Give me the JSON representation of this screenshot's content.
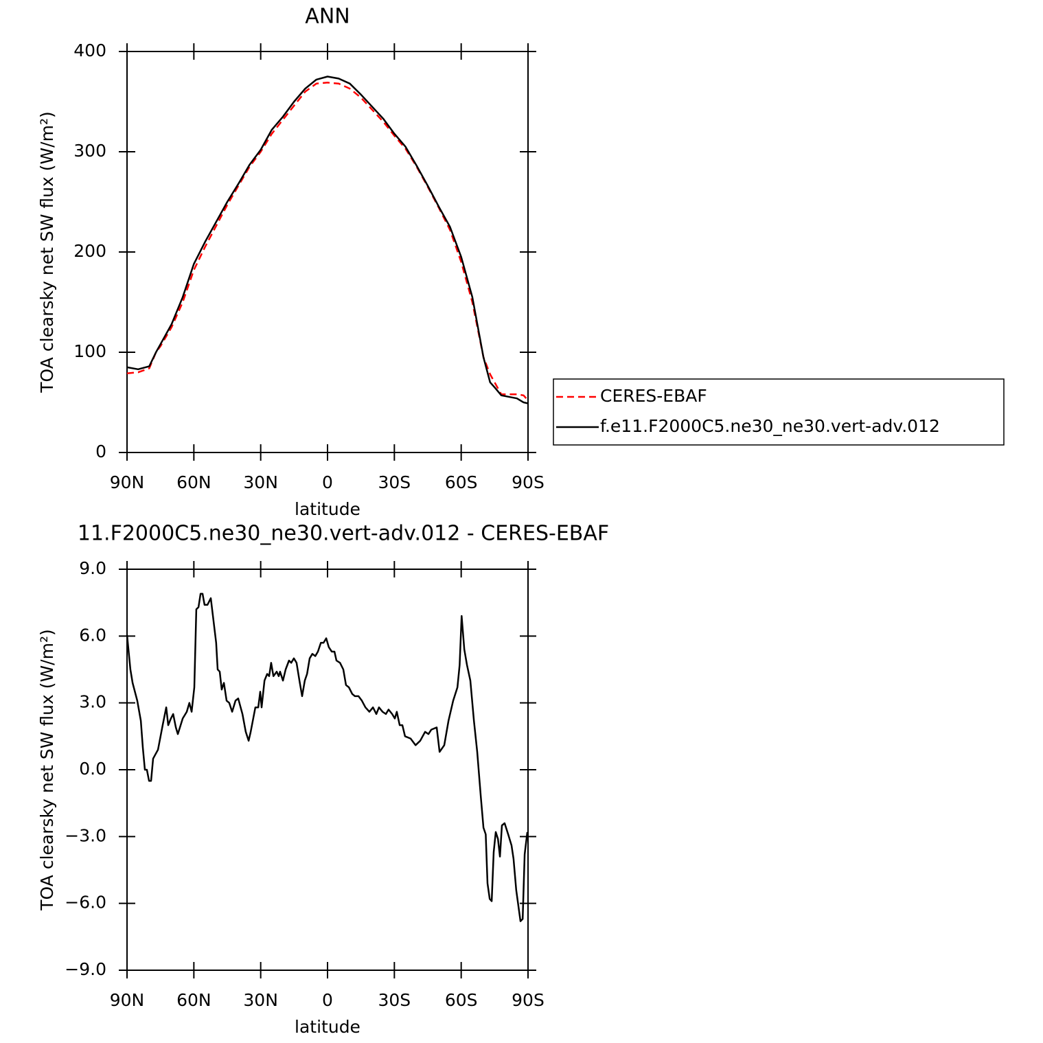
{
  "chart_data": [
    {
      "type": "line",
      "title": "ANN",
      "xlabel": "latitude",
      "ylabel": "TOA clearsky net SW flux (W/m²)",
      "x": [
        90,
        85,
        80,
        77,
        75,
        70,
        65,
        60,
        55,
        50,
        45,
        40,
        35,
        30,
        25,
        20,
        15,
        10,
        5,
        0,
        -5,
        -10,
        -15,
        -20,
        -25,
        -30,
        -35,
        -40,
        -45,
        -50,
        -55,
        -60,
        -65,
        -70,
        -73,
        -75,
        -78,
        -85,
        -88,
        -90
      ],
      "series": [
        {
          "name": "CERES-EBAF",
          "color": "#ff0000",
          "dashed": true,
          "values": [
            79,
            80,
            84,
            100,
            106,
            125,
            150,
            182,
            205,
            226,
            247,
            266,
            285,
            300,
            318,
            332,
            346,
            360,
            368,
            369,
            368,
            363,
            354,
            342,
            330,
            316,
            303,
            285,
            265,
            244,
            222,
            190,
            150,
            95,
            78,
            70,
            58,
            58,
            57,
            52
          ]
        },
        {
          "name": "f.e11.F2000C5.ne30_ne30.vert-adv.012",
          "color": "#000000",
          "dashed": false,
          "values": [
            85,
            83,
            86,
            100,
            108,
            128,
            155,
            188,
            210,
            230,
            250,
            268,
            287,
            302,
            322,
            335,
            350,
            363,
            372,
            375,
            373,
            368,
            357,
            345,
            333,
            318,
            305,
            286,
            266,
            245,
            225,
            195,
            155,
            95,
            70,
            65,
            57,
            54,
            50,
            49
          ]
        }
      ],
      "xlim": [
        90,
        -90
      ],
      "xticks": [
        {
          "value": 90,
          "label": "90N"
        },
        {
          "value": 60,
          "label": "60N"
        },
        {
          "value": 30,
          "label": "30N"
        },
        0,
        {
          "value": -30,
          "label": "30S"
        },
        {
          "value": -60,
          "label": "60S"
        },
        {
          "value": -90,
          "label": "90S"
        }
      ],
      "ylim": [
        0,
        400
      ],
      "yticks": [
        0,
        100,
        200,
        300,
        400
      ],
      "legend": "right"
    },
    {
      "type": "line",
      "title": "11.F2000C5.ne30_ne30.vert-adv.012 - CERES-EBAF",
      "xlabel": "latitude",
      "ylabel": "TOA clearsky net SW flux (W/m²)",
      "x": [
        90,
        88.5,
        87.5,
        85.4,
        83.8,
        82.9,
        82,
        81.1,
        80.1,
        79.2,
        78.3,
        76.1,
        74,
        72.4,
        71.5,
        70.3,
        69.3,
        68.1,
        67.2,
        65,
        63.2,
        62,
        61,
        59.8,
        58.9,
        57.9,
        57,
        56.1,
        55.2,
        53.9,
        52.4,
        50,
        49.3,
        48.4,
        47.5,
        46.5,
        45.3,
        44.1,
        42.8,
        41.3,
        40.1,
        38.2,
        36.7,
        35.4,
        34.5,
        32.4,
        31.1,
        30.2,
        29.6,
        28.3,
        27.1,
        26.2,
        25.3,
        24.3,
        22.8,
        21.9,
        21.3,
        20,
        18.8,
        17.3,
        16.3,
        15.1,
        13.9,
        12.6,
        11.4,
        10.2,
        9.2,
        8,
        6.8,
        5.5,
        4.3,
        3,
        1.8,
        0.6,
        -0.6,
        -1.9,
        -3.1,
        -4,
        -5.6,
        -7.1,
        -8.3,
        -9.6,
        -11.1,
        -12.3,
        -13.9,
        -15.4,
        -17,
        -18.8,
        -20.4,
        -21.9,
        -23.1,
        -24.7,
        -26.2,
        -27.4,
        -29,
        -30.2,
        -31.1,
        -32.4,
        -33.6,
        -34.8,
        -37.3,
        -39.5,
        -41.6,
        -43.8,
        -45.3,
        -46.6,
        -49,
        -50.3,
        -52.4,
        -54.3,
        -56.4,
        -58.3,
        -59.3,
        -60.2,
        -61.4,
        -62.6,
        -64.1,
        -65.7,
        -67.2,
        -68.8,
        -70,
        -71,
        -71.8,
        -72.8,
        -73.7,
        -74.6,
        -75.5,
        -76.5,
        -77.4,
        -78.3,
        -79.5,
        -81.1,
        -82.6,
        -83.5,
        -84.7,
        -86.6,
        -87.6,
        -88.5,
        -89.7
      ],
      "series": [
        {
          "color": "#000000",
          "dashed": false,
          "values": [
            6.05,
            4.5,
            3.9,
            3.1,
            2.2,
            1.0,
            0,
            0,
            -0.5,
            -0.5,
            0.5,
            0.9,
            2.0,
            2.8,
            2.0,
            2.3,
            2.5,
            1.9,
            1.6,
            2.3,
            2.6,
            3.0,
            2.6,
            3.7,
            7.2,
            7.3,
            7.9,
            7.9,
            7.4,
            7.4,
            7.7,
            5.7,
            4.5,
            4.4,
            3.6,
            3.9,
            3.1,
            3.0,
            2.6,
            3.1,
            3.2,
            2.5,
            1.7,
            1.3,
            1.7,
            2.8,
            2.8,
            3.5,
            2.8,
            4.0,
            4.3,
            4.2,
            4.8,
            4.2,
            4.4,
            4.2,
            4.4,
            4.0,
            4.5,
            4.9,
            4.8,
            5.0,
            4.8,
            4.0,
            3.3,
            4.0,
            4.3,
            5.0,
            5.2,
            5.1,
            5.3,
            5.7,
            5.7,
            5.9,
            5.5,
            5.3,
            5.3,
            4.9,
            4.8,
            4.5,
            3.8,
            3.7,
            3.4,
            3.3,
            3.3,
            3.1,
            2.8,
            2.6,
            2.8,
            2.5,
            2.8,
            2.6,
            2.5,
            2.7,
            2.5,
            2.3,
            2.6,
            2.0,
            2.0,
            1.5,
            1.4,
            1.1,
            1.3,
            1.7,
            1.6,
            1.8,
            1.9,
            0.8,
            1.1,
            2.2,
            3.1,
            3.7,
            4.7,
            6.9,
            5.4,
            4.7,
            4.0,
            2.2,
            0.8,
            -1.2,
            -2.6,
            -2.9,
            -5.1,
            -5.8,
            -5.9,
            -3.7,
            -2.8,
            -3.1,
            -3.9,
            -2.5,
            -2.4,
            -2.9,
            -3.4,
            -4.0,
            -5.4,
            -6.8,
            -6.7,
            -3.8,
            -2.8
          ]
        }
      ],
      "xlim": [
        90,
        -90
      ],
      "xticks": [
        {
          "value": 90,
          "label": "90N"
        },
        {
          "value": 60,
          "label": "60N"
        },
        {
          "value": 30,
          "label": "30N"
        },
        0,
        {
          "value": -30,
          "label": "30S"
        },
        {
          "value": -60,
          "label": "60S"
        },
        {
          "value": -90,
          "label": "90S"
        }
      ],
      "ylim": [
        -9,
        9
      ],
      "yticks": [
        {
          "value": -9,
          "label": "−9.0"
        },
        {
          "value": -6,
          "label": "−6.0"
        },
        {
          "value": -3,
          "label": "−3.0"
        },
        {
          "value": 0,
          "label": "0.0"
        },
        {
          "value": 3,
          "label": "3.0"
        },
        {
          "value": 6,
          "label": "6.0"
        },
        {
          "value": 9,
          "label": "9.0"
        }
      ]
    }
  ]
}
